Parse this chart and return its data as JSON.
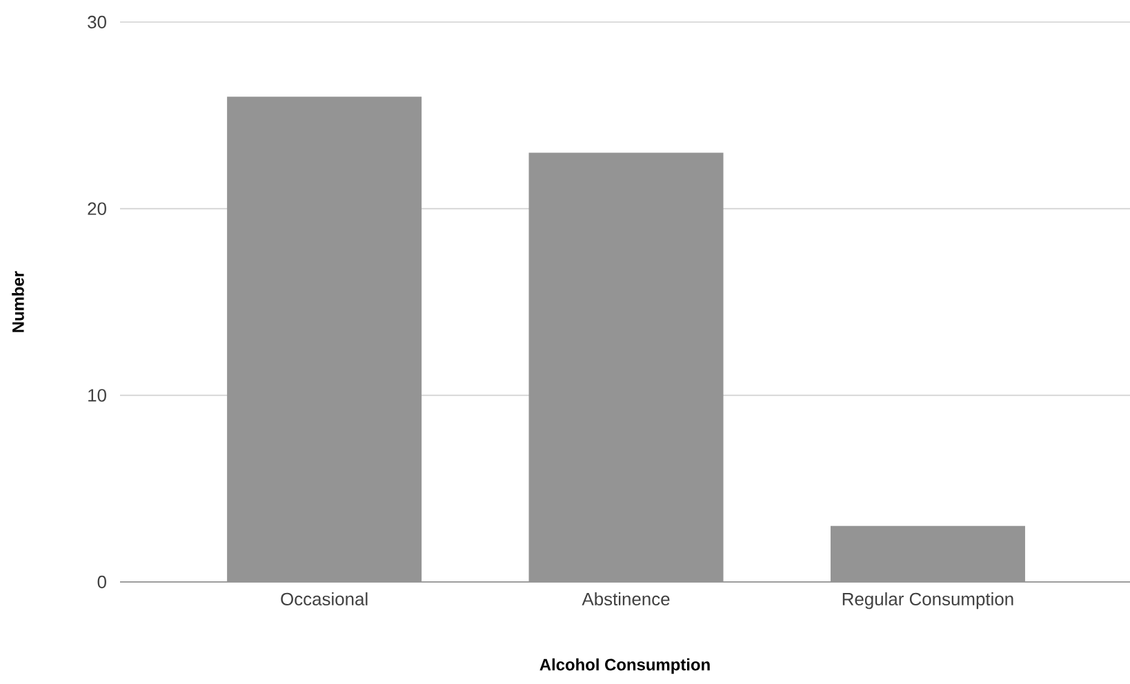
{
  "chart_data": {
    "type": "bar",
    "xlabel": "Alcohol Consumption",
    "ylabel": "Number",
    "categories": [
      "Occasional",
      "Abstinence",
      "Regular Consumption"
    ],
    "values": [
      26,
      23,
      3
    ],
    "color": "#949494",
    "ylim": [
      0,
      30
    ],
    "yticks": [
      0,
      10,
      20,
      30
    ],
    "grid": "y"
  }
}
